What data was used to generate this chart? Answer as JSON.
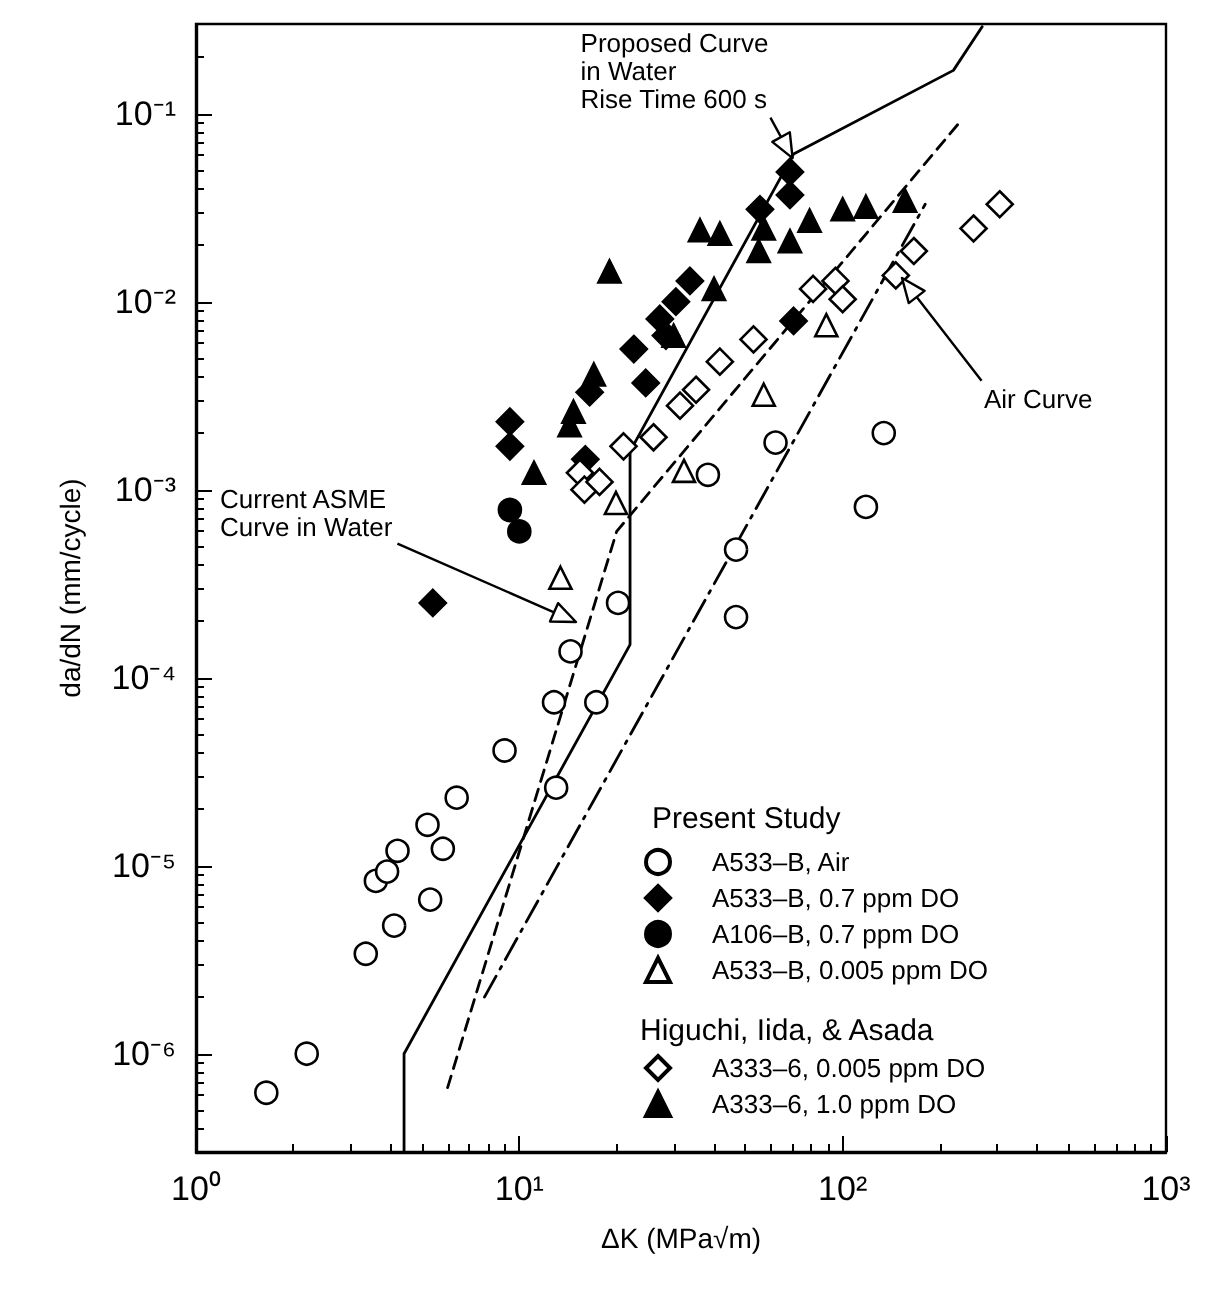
{
  "chart_data": {
    "type": "scatter",
    "xlabel": "ΔK (MPa√m)",
    "ylabel": "da/dN (mm/cycle)",
    "log": "xy",
    "grid": false,
    "legend": "bottom right",
    "xlim": [
      1,
      1000
    ],
    "xticks": [
      {
        "value": 1,
        "label": "10⁰"
      },
      {
        "value": 10,
        "label": "10¹"
      },
      {
        "value": 100,
        "label": "10²"
      },
      {
        "value": 1000,
        "label": "10³"
      }
    ],
    "ylim": [
      3e-07,
      0.3
    ],
    "yticks": [
      {
        "value": 1e-06,
        "label": "10⁻⁶"
      },
      {
        "value": 1e-05,
        "label": "10⁻⁵"
      },
      {
        "value": 0.0001,
        "label": "10⁻⁴"
      },
      {
        "value": 0.001,
        "label": "10⁻³"
      },
      {
        "value": 0.01,
        "label": "10⁻²"
      },
      {
        "value": 0.1,
        "label": "10⁻¹"
      }
    ],
    "series": [
      {
        "name": "A533–B, Air",
        "marker": "circle",
        "color": "#ffffff",
        "x": [
          1.65,
          2.2,
          3.35,
          4.1,
          3.6,
          3.9,
          4.2,
          5.3,
          5.2,
          5.8,
          6.4,
          9.0,
          13,
          12.8,
          14.4,
          17.3,
          20.2,
          46.8,
          38.3,
          62,
          134,
          118,
          46.8
        ],
        "values": [
          6.2e-07,
          1e-06,
          3.4e-06,
          4.8e-06,
          8.3e-06,
          9.3e-06,
          1.2e-05,
          6.6e-06,
          1.65e-05,
          1.23e-05,
          2.3e-05,
          4.1e-05,
          2.6e-05,
          7.4e-05,
          0.000138,
          7.4e-05,
          0.00025,
          0.00021,
          0.0012,
          0.00178,
          0.002,
          0.00081,
          0.00048
        ]
      },
      {
        "name": "A533–B, 0.7 ppm DO",
        "marker": "diamond",
        "color": "#000000",
        "x": [
          9.35,
          9.35,
          5.4,
          16.5,
          68.7,
          68.7,
          55.5,
          33.7,
          30.5,
          27.2,
          22.6,
          28.4,
          24.6,
          16,
          70.5
        ],
        "values": [
          0.0023,
          0.0017,
          0.00025,
          0.0033,
          0.049,
          0.037,
          0.031,
          0.0129,
          0.01,
          0.0081,
          0.0056,
          0.0066,
          0.0037,
          0.00145,
          0.0079
        ]
      },
      {
        "name": "A106–B, 0.7 ppm DO",
        "marker": "circle",
        "color": "#000000",
        "x": [
          9.35,
          10
        ],
        "values": [
          0.00078,
          0.0006
        ]
      },
      {
        "name": "A533–B, 0.005 ppm DO",
        "marker": "triangle",
        "color": "#ffffff",
        "x": [
          13.4,
          19.9,
          32.3,
          57,
          89
        ],
        "values": [
          0.00034,
          0.00085,
          0.00126,
          0.0032,
          0.0075
        ]
      },
      {
        "name": "A333–6, 0.005 ppm DO",
        "marker": "diamond",
        "color": "#ffffff",
        "x": [
          15.4,
          15.9,
          17.7,
          21,
          26,
          35.2,
          31.4,
          41.7,
          53,
          81,
          95,
          100,
          146,
          166,
          254,
          306
        ],
        "values": [
          0.00123,
          0.001,
          0.0011,
          0.0017,
          0.0019,
          0.0034,
          0.0028,
          0.0048,
          0.0063,
          0.0117,
          0.0129,
          0.0103,
          0.0138,
          0.0186,
          0.0245,
          0.033
        ]
      },
      {
        "name": "A333–6, 1.0 ppm DO",
        "marker": "triangle",
        "color": "#000000",
        "x": [
          11.1,
          14.3,
          19,
          14.7,
          36.2,
          41.7,
          57,
          68.7,
          55,
          79,
          100,
          118,
          156,
          40,
          17,
          30
        ],
        "values": [
          0.00123,
          0.0022,
          0.0145,
          0.0026,
          0.024,
          0.023,
          0.0245,
          0.021,
          0.0186,
          0.027,
          0.031,
          0.032,
          0.0345,
          0.0117,
          0.0041,
          0.0066
        ]
      },
      {
        "type": "line",
        "line_style": "solid",
        "marker": "none",
        "color": "#000000",
        "x": [
          4.4,
          4.4,
          22,
          22,
          70.5,
          220,
          270
        ],
        "values": [
          3e-07,
          1e-06,
          0.00015,
          0.0016,
          0.061,
          0.17,
          0.29
        ]
      },
      {
        "type": "line",
        "line_style": "dashed",
        "marker": "none",
        "color": "#000000",
        "x": [
          6,
          20,
          230
        ],
        "values": [
          6.6e-07,
          0.0006,
          0.09
        ]
      },
      {
        "type": "line",
        "line_style": "dashdot",
        "marker": "none",
        "color": "#000000",
        "x": [
          7.8,
          180
        ],
        "values": [
          2e-06,
          0.033
        ]
      }
    ],
    "annotations": [
      {
        "text": "Proposed Curve\nin Water\nRise Time 600 s",
        "x": 70,
        "y": 0.058
      },
      "Current ASME\nCurve in Water",
      "Air Curve",
      "Present Study",
      "Higuchi, Iida, & Asada"
    ]
  }
}
